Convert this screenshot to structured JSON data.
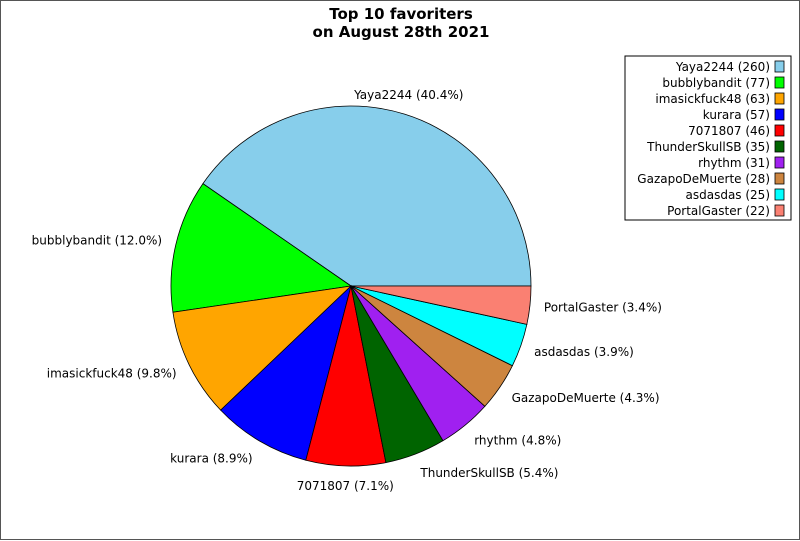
{
  "chart_data": {
    "type": "pie",
    "title": "Top 10 favoriters",
    "subtitle": "on August 28th 2021",
    "slices": [
      {
        "name": "Yaya2244",
        "value": 260,
        "percent": 40.4,
        "color": "#87ceeb",
        "label": "Yaya2244 (40.4%)",
        "legend": "Yaya2244 (260)"
      },
      {
        "name": "bubblybandit",
        "value": 77,
        "percent": 12.0,
        "color": "#00ff00",
        "label": "bubblybandit (12.0%)",
        "legend": "bubblybandit (77)"
      },
      {
        "name": "imasickfuck48",
        "value": 63,
        "percent": 9.8,
        "color": "#ffa500",
        "label": "imasickfuck48 (9.8%)",
        "legend": "imasickfuck48 (63)"
      },
      {
        "name": "kurara",
        "value": 57,
        "percent": 8.9,
        "color": "#0000ff",
        "label": "kurara (8.9%)",
        "legend": "kurara (57)"
      },
      {
        "name": "7071807",
        "value": 46,
        "percent": 7.1,
        "color": "#ff0000",
        "label": "7071807 (7.1%)",
        "legend": "7071807 (46)"
      },
      {
        "name": "ThunderSkullSB",
        "value": 35,
        "percent": 5.4,
        "color": "#006400",
        "label": "ThunderSkullSB (5.4%)",
        "legend": "ThunderSkullSB (35)"
      },
      {
        "name": "rhythm",
        "value": 31,
        "percent": 4.8,
        "color": "#a020f0",
        "label": "rhythm (4.8%)",
        "legend": "rhythm (31)"
      },
      {
        "name": "GazapoDeMuerte",
        "value": 28,
        "percent": 4.3,
        "color": "#cd853f",
        "label": "GazapoDeMuerte (4.3%)",
        "legend": "GazapoDeMuerte (28)"
      },
      {
        "name": "asdasdas",
        "value": 25,
        "percent": 3.9,
        "color": "#00ffff",
        "label": "asdasdas (3.9%)",
        "legend": "asdasdas (25)"
      },
      {
        "name": "PortalGaster",
        "value": 22,
        "percent": 3.4,
        "color": "#fa8072",
        "label": "PortalGaster (3.4%)",
        "legend": "PortalGaster (22)"
      }
    ],
    "legend_position": "top-right",
    "start_angle_deg": 0,
    "direction": "counterclockwise"
  }
}
